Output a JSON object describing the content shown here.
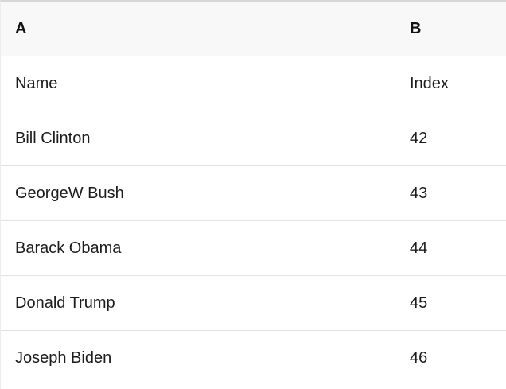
{
  "table": {
    "header": {
      "col_a": "A",
      "col_b": "B"
    },
    "rows": [
      {
        "a": "Name",
        "b": "Index"
      },
      {
        "a": "Bill Clinton",
        "b": "42"
      },
      {
        "a": "GeorgeW Bush",
        "b": "43"
      },
      {
        "a": "Barack Obama",
        "b": "44"
      },
      {
        "a": "Donald Trump",
        "b": "45"
      },
      {
        "a": "Joseph Biden",
        "b": "46"
      }
    ]
  },
  "colors": {
    "header_background": "#f8f8f8",
    "row_background": "#ffffff",
    "grid_border": "#e2e2e2",
    "top_border": "#d7d7d7",
    "text": "#1c1c1e"
  }
}
